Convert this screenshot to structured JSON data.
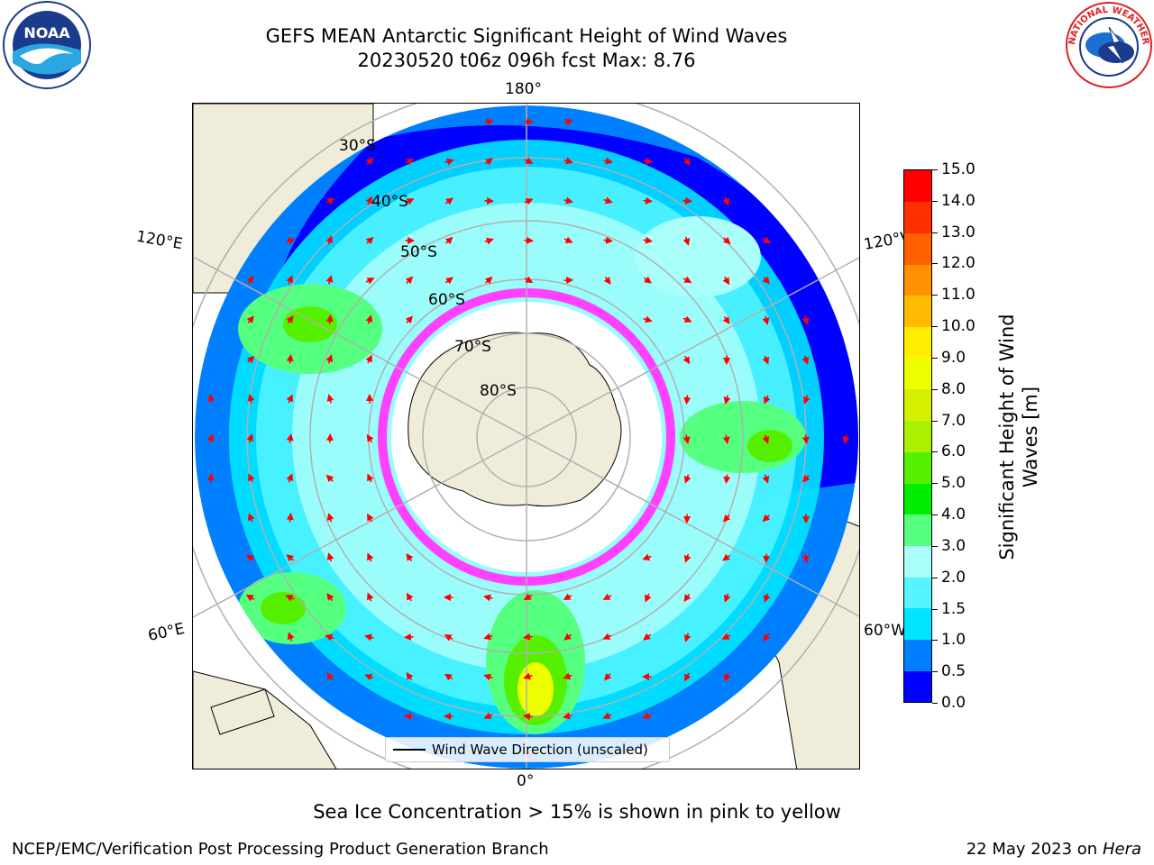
{
  "title": {
    "line1": "GEFS MEAN Antarctic Significant Height of Wind Waves",
    "line2": "20230520 t06z 096h fcst   Max: 8.76"
  },
  "map": {
    "projection": "south-polar-stereographic",
    "colors": {
      "land": "#efedda",
      "ocean_blank": "#ffffff",
      "grid": "#b0b0b0",
      "arrows": "#ff0000",
      "sea_ice": "#ff40ff"
    },
    "longitude_labels": {
      "top": "180°",
      "bottom": "0°",
      "upper_left": "120°E",
      "upper_right": "120°W",
      "lower_left": "60°E",
      "lower_right": "60°W"
    },
    "latitude_labels": [
      "30°S",
      "40°S",
      "50°S",
      "60°S",
      "70°S",
      "80°S"
    ],
    "legend_label": "Wind Wave Direction (unscaled)"
  },
  "colorbar": {
    "title": "Significant Height of Wind Waves [m]",
    "tick_labels": [
      "0.0",
      "0.5",
      "1.0",
      "1.5",
      "2.0",
      "3.0",
      "4.0",
      "5.0",
      "6.0",
      "7.0",
      "8.0",
      "9.0",
      "10.0",
      "11.0",
      "12.0",
      "13.0",
      "14.0",
      "15.0"
    ],
    "bins": [
      {
        "from": "0.0",
        "to": "0.5",
        "color": "#0000ff"
      },
      {
        "from": "0.5",
        "to": "1.0",
        "color": "#0080ff"
      },
      {
        "from": "1.0",
        "to": "1.5",
        "color": "#00e5ff"
      },
      {
        "from": "1.5",
        "to": "2.0",
        "color": "#55f4ff"
      },
      {
        "from": "2.0",
        "to": "3.0",
        "color": "#aafffa"
      },
      {
        "from": "3.0",
        "to": "4.0",
        "color": "#55ff80"
      },
      {
        "from": "4.0",
        "to": "5.0",
        "color": "#00ee00"
      },
      {
        "from": "5.0",
        "to": "6.0",
        "color": "#55f000"
      },
      {
        "from": "6.0",
        "to": "7.0",
        "color": "#aaf000"
      },
      {
        "from": "7.0",
        "to": "8.0",
        "color": "#d4f000"
      },
      {
        "from": "8.0",
        "to": "9.0",
        "color": "#eeff00"
      },
      {
        "from": "9.0",
        "to": "10.0",
        "color": "#ffee00"
      },
      {
        "from": "10.0",
        "to": "11.0",
        "color": "#ffbb00"
      },
      {
        "from": "11.0",
        "to": "12.0",
        "color": "#ff9000"
      },
      {
        "from": "12.0",
        "to": "13.0",
        "color": "#ff6000"
      },
      {
        "from": "13.0",
        "to": "14.0",
        "color": "#ff3000"
      },
      {
        "from": "14.0",
        "to": "15.0",
        "color": "#ff0000"
      }
    ]
  },
  "note": "Sea Ice Concentration > 15% is shown in pink to yellow",
  "footer": {
    "left": "NCEP/EMC/Verification Post Processing Product Generation Branch",
    "right_date": "22 May 2023 on",
    "right_host": "Hera"
  },
  "logos": {
    "left_text": "NOAA",
    "right_text": "NATIONAL WEATHER SERVICE"
  }
}
